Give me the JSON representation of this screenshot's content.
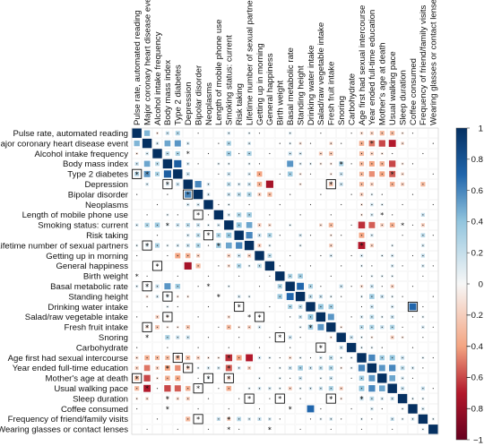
{
  "chart_data": {
    "type": "heatmap",
    "title": "",
    "variables": [
      "Pulse rate, automated reading",
      "Major coronary heart disease event",
      "Alcohol intake frequency",
      "Body mass index",
      "Type 2 diabetes",
      "Depression",
      "Bipolar disorder",
      "Neoplasms",
      "Length of mobile phone use",
      "Smoking status: current",
      "Risk taking",
      "Lifetime number of sexual partners",
      "Getting up in morning",
      "General happiness",
      "Birth weight",
      "Basal metabolic rate",
      "Standing height",
      "Drinking water intake",
      "Salad/raw vegetable intake",
      "Fresh fruit intake",
      "Snoring",
      "Carbohydrate",
      "Age first had sexual intercourse",
      "Year ended full-time education",
      "Mother's age at death",
      "Usual walking pace",
      "Sleep duration",
      "Coffee consumed",
      "Frequency of friend/family visits",
      "Wearing glasses or contact lenses"
    ],
    "colorbar": {
      "ticks": [
        "1",
        "0.8",
        "0.6",
        "0.4",
        "0.2",
        "0",
        "−0.2",
        "−0.4",
        "−0.6",
        "−0.8",
        "−1"
      ],
      "range": [
        -1,
        1
      ],
      "low_color": "#b2182b",
      "mid_color": "#f7f7f7",
      "high_color": "#2166ac"
    },
    "cells": [
      [
        0,
        1,
        0.45
      ],
      [
        0,
        2,
        -0.1
      ],
      [
        0,
        3,
        0.2
      ],
      [
        0,
        4,
        0.28
      ],
      [
        0,
        9,
        0.15
      ],
      [
        0,
        11,
        0.1
      ],
      [
        0,
        15,
        0.12
      ],
      [
        0,
        22,
        -0.15
      ],
      [
        0,
        23,
        -0.2
      ],
      [
        0,
        24,
        -0.3
      ],
      [
        0,
        25,
        -0.3
      ],
      [
        0,
        26,
        -0.1
      ],
      [
        1,
        2,
        0.15
      ],
      [
        1,
        3,
        0.5
      ],
      [
        1,
        4,
        0.55
      ],
      [
        1,
        5,
        0.15
      ],
      [
        1,
        9,
        0.3
      ],
      [
        1,
        11,
        0.15
      ],
      [
        1,
        15,
        0.1
      ],
      [
        1,
        16,
        -0.12
      ],
      [
        1,
        19,
        -0.15
      ],
      [
        1,
        22,
        -0.35
      ],
      [
        1,
        23,
        -0.5
      ],
      [
        1,
        24,
        -0.6
      ],
      [
        1,
        25,
        -0.7
      ],
      [
        1,
        26,
        -0.15
      ],
      [
        2,
        3,
        0.25
      ],
      [
        2,
        4,
        0.3
      ],
      [
        2,
        9,
        0.35
      ],
      [
        2,
        11,
        0.3
      ],
      [
        2,
        15,
        0.2
      ],
      [
        2,
        16,
        0.15
      ],
      [
        2,
        18,
        -0.2
      ],
      [
        2,
        19,
        -0.25
      ],
      [
        2,
        22,
        -0.3
      ],
      [
        2,
        23,
        -0.2
      ],
      [
        2,
        24,
        -0.1
      ],
      [
        3,
        4,
        0.75
      ],
      [
        3,
        5,
        0.15
      ],
      [
        3,
        8,
        0.1
      ],
      [
        3,
        9,
        0.1
      ],
      [
        3,
        11,
        0.1
      ],
      [
        3,
        15,
        0.55
      ],
      [
        3,
        16,
        0.12
      ],
      [
        3,
        17,
        0.1
      ],
      [
        3,
        18,
        -0.1
      ],
      [
        3,
        19,
        -0.1
      ],
      [
        3,
        20,
        0.3
      ],
      [
        3,
        22,
        -0.3
      ],
      [
        3,
        23,
        -0.4
      ],
      [
        3,
        24,
        -0.35
      ],
      [
        3,
        25,
        -0.6
      ],
      [
        3,
        26,
        -0.1
      ],
      [
        4,
        5,
        0.2
      ],
      [
        4,
        9,
        0.2
      ],
      [
        4,
        11,
        0.15
      ],
      [
        4,
        12,
        -0.4
      ],
      [
        4,
        15,
        0.35
      ],
      [
        4,
        16,
        -0.1
      ],
      [
        4,
        19,
        -0.1
      ],
      [
        4,
        20,
        0.2
      ],
      [
        4,
        22,
        -0.3
      ],
      [
        4,
        23,
        -0.45
      ],
      [
        4,
        24,
        -0.4
      ],
      [
        4,
        25,
        -0.55
      ],
      [
        4,
        26,
        -0.15
      ],
      [
        5,
        6,
        0.6
      ],
      [
        5,
        7,
        0.15
      ],
      [
        5,
        9,
        0.25
      ],
      [
        5,
        10,
        0.15
      ],
      [
        5,
        11,
        0.2
      ],
      [
        5,
        12,
        -0.35
      ],
      [
        5,
        13,
        -0.75
      ],
      [
        5,
        16,
        -0.1
      ],
      [
        5,
        19,
        -0.25
      ],
      [
        5,
        20,
        0.2
      ],
      [
        5,
        22,
        -0.3
      ],
      [
        5,
        23,
        -0.2
      ],
      [
        5,
        25,
        -0.35
      ],
      [
        5,
        26,
        -0.2
      ],
      [
        5,
        28,
        -0.3
      ],
      [
        6,
        7,
        0.15
      ],
      [
        6,
        9,
        0.2
      ],
      [
        6,
        10,
        0.25
      ],
      [
        6,
        11,
        0.3
      ],
      [
        6,
        12,
        -0.2
      ],
      [
        6,
        13,
        -0.3
      ],
      [
        6,
        22,
        -0.2
      ],
      [
        6,
        23,
        0.1
      ],
      [
        7,
        9,
        0.1
      ],
      [
        7,
        22,
        -0.1
      ],
      [
        7,
        23,
        0.15
      ],
      [
        7,
        24,
        0.1
      ],
      [
        8,
        9,
        0.15
      ],
      [
        8,
        10,
        0.3
      ],
      [
        8,
        11,
        0.35
      ],
      [
        8,
        22,
        -0.1
      ],
      [
        8,
        23,
        0.15
      ],
      [
        8,
        28,
        0.2
      ],
      [
        9,
        10,
        0.4
      ],
      [
        9,
        11,
        0.5
      ],
      [
        9,
        12,
        -0.2
      ],
      [
        9,
        13,
        -0.15
      ],
      [
        9,
        15,
        0.1
      ],
      [
        9,
        18,
        -0.15
      ],
      [
        9,
        19,
        -0.3
      ],
      [
        9,
        22,
        -0.65
      ],
      [
        9,
        23,
        -0.55
      ],
      [
        9,
        24,
        -0.2
      ],
      [
        9,
        25,
        -0.35
      ],
      [
        9,
        28,
        -0.2
      ],
      [
        10,
        11,
        0.6
      ],
      [
        10,
        12,
        0.2
      ],
      [
        10,
        13,
        0.3
      ],
      [
        10,
        16,
        0.15
      ],
      [
        10,
        19,
        -0.1
      ],
      [
        10,
        22,
        -0.4
      ],
      [
        10,
        23,
        0.15
      ],
      [
        10,
        28,
        0.25
      ],
      [
        11,
        12,
        -0.2
      ],
      [
        11,
        13,
        0.1
      ],
      [
        11,
        16,
        0.1
      ],
      [
        11,
        19,
        -0.2
      ],
      [
        11,
        22,
        -0.7
      ],
      [
        11,
        23,
        -0.2
      ],
      [
        11,
        25,
        0.1
      ],
      [
        11,
        28,
        0.15
      ],
      [
        12,
        13,
        0.25
      ],
      [
        12,
        19,
        0.15
      ],
      [
        12,
        22,
        0.15
      ],
      [
        12,
        24,
        0.1
      ],
      [
        12,
        25,
        0.15
      ],
      [
        12,
        28,
        0.2
      ],
      [
        13,
        22,
        0.1
      ],
      [
        13,
        25,
        0.15
      ],
      [
        13,
        28,
        0.15
      ],
      [
        14,
        15,
        0.3
      ],
      [
        14,
        16,
        0.35
      ],
      [
        14,
        23,
        0.1
      ],
      [
        14,
        24,
        0.1
      ],
      [
        14,
        25,
        0.1
      ],
      [
        15,
        16,
        0.7
      ],
      [
        15,
        17,
        0.3
      ],
      [
        15,
        20,
        0.2
      ],
      [
        15,
        22,
        -0.15
      ],
      [
        15,
        23,
        0.2
      ],
      [
        15,
        25,
        -0.2
      ],
      [
        16,
        17,
        0.25
      ],
      [
        16,
        18,
        0.2
      ],
      [
        16,
        19,
        0.1
      ],
      [
        16,
        22,
        0.1
      ],
      [
        16,
        23,
        0.35
      ],
      [
        16,
        24,
        0.2
      ],
      [
        16,
        25,
        0.1
      ],
      [
        17,
        18,
        0.4
      ],
      [
        17,
        19,
        0.35
      ],
      [
        17,
        23,
        0.2
      ],
      [
        17,
        25,
        0.15
      ],
      [
        17,
        27,
        0.7
      ],
      [
        18,
        19,
        0.55
      ],
      [
        18,
        22,
        0.15
      ],
      [
        18,
        23,
        0.25
      ],
      [
        18,
        24,
        0.1
      ],
      [
        18,
        25,
        0.2
      ],
      [
        18,
        28,
        0.1
      ],
      [
        19,
        20,
        -0.1
      ],
      [
        19,
        22,
        0.25
      ],
      [
        19,
        23,
        0.3
      ],
      [
        19,
        24,
        0.2
      ],
      [
        19,
        25,
        0.3
      ],
      [
        19,
        28,
        0.15
      ],
      [
        20,
        21,
        0.2
      ],
      [
        20,
        22,
        0.1
      ],
      [
        20,
        23,
        -0.1
      ],
      [
        20,
        25,
        -0.2
      ],
      [
        20,
        26,
        -0.1
      ],
      [
        21,
        22,
        0.1
      ],
      [
        21,
        23,
        0.1
      ],
      [
        22,
        23,
        0.6
      ],
      [
        22,
        24,
        0.35
      ],
      [
        22,
        25,
        0.4
      ],
      [
        22,
        26,
        0.2
      ],
      [
        22,
        28,
        0.1
      ],
      [
        23,
        24,
        0.55
      ],
      [
        23,
        25,
        0.6
      ],
      [
        23,
        26,
        0.25
      ],
      [
        23,
        27,
        0.15
      ],
      [
        24,
        25,
        0.5
      ],
      [
        24,
        26,
        0.15
      ],
      [
        25,
        26,
        0.2
      ],
      [
        25,
        28,
        0.2
      ],
      [
        26,
        27,
        0.1
      ],
      [
        26,
        28,
        0.1
      ],
      [
        27,
        28,
        0.15
      ],
      [
        28,
        29,
        0.1
      ]
    ],
    "stars": [
      [
        4,
        0
      ],
      [
        4,
        1
      ],
      [
        5,
        3
      ],
      [
        6,
        5
      ],
      [
        8,
        6
      ],
      [
        9,
        3
      ],
      [
        10,
        7
      ],
      [
        11,
        1
      ],
      [
        11,
        8
      ],
      [
        13,
        2
      ],
      [
        15,
        1
      ],
      [
        15,
        7
      ],
      [
        16,
        3
      ],
      [
        17,
        10
      ],
      [
        18,
        3
      ],
      [
        18,
        11
      ],
      [
        19,
        1
      ],
      [
        20,
        1
      ],
      [
        22,
        4
      ],
      [
        22,
        9
      ],
      [
        23,
        3
      ],
      [
        23,
        5
      ],
      [
        23,
        9
      ],
      [
        24,
        0
      ],
      [
        24,
        7
      ],
      [
        24,
        9
      ],
      [
        25,
        1
      ],
      [
        25,
        6
      ],
      [
        26,
        3
      ],
      [
        26,
        11
      ],
      [
        27,
        3
      ],
      [
        28,
        6
      ],
      [
        28,
        9
      ],
      [
        29,
        9
      ],
      [
        2,
        5
      ],
      [
        5,
        19
      ],
      [
        14,
        0
      ],
      [
        16,
        8
      ],
      [
        18,
        12
      ],
      [
        19,
        17
      ],
      [
        20,
        14
      ],
      [
        21,
        18
      ],
      [
        26,
        14
      ],
      [
        26,
        19
      ],
      [
        27,
        15
      ],
      [
        29,
        13
      ],
      [
        3,
        20
      ],
      [
        4,
        25
      ],
      [
        1,
        23
      ],
      [
        8,
        24
      ],
      [
        9,
        26
      ],
      [
        11,
        22
      ],
      [
        26,
        22
      ]
    ],
    "boxed": [
      [
        4,
        0
      ],
      [
        5,
        3
      ],
      [
        6,
        5
      ],
      [
        8,
        6
      ],
      [
        10,
        7
      ],
      [
        11,
        1
      ],
      [
        13,
        2
      ],
      [
        15,
        1
      ],
      [
        16,
        3
      ],
      [
        18,
        3
      ],
      [
        19,
        1
      ],
      [
        22,
        4
      ],
      [
        23,
        5
      ],
      [
        24,
        0
      ],
      [
        24,
        7
      ],
      [
        24,
        9
      ],
      [
        25,
        6
      ],
      [
        26,
        11
      ],
      [
        28,
        6
      ],
      [
        17,
        10
      ],
      [
        20,
        14
      ],
      [
        26,
        14
      ],
      [
        26,
        19
      ],
      [
        21,
        18
      ],
      [
        18,
        12
      ],
      [
        5,
        19
      ],
      [
        17,
        27
      ]
    ]
  }
}
